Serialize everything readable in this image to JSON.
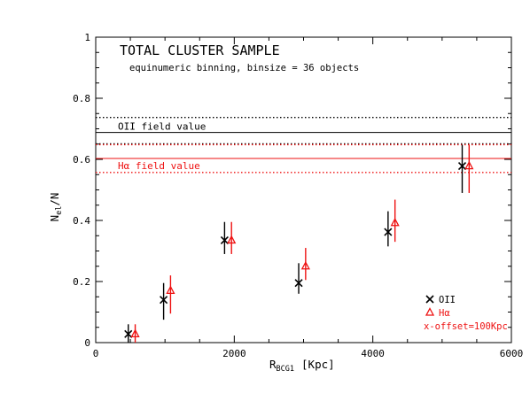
{
  "chart_data": {
    "type": "scatter",
    "title": "TOTAL CLUSTER SAMPLE",
    "subtitle": "equinumeric binning, binsize = 36 objects",
    "xlabel_main": "R",
    "xlabel_sub": "BCG1",
    "xlabel_unit": "[Kpc]",
    "ylabel_main": "N",
    "ylabel_sub": "el",
    "ylabel_tail": "/N",
    "xlim": [
      0,
      6000
    ],
    "ylim": [
      0,
      1
    ],
    "xticks": [
      0,
      2000,
      4000,
      6000
    ],
    "yticks": [
      0,
      0.2,
      0.4,
      0.6,
      0.8,
      1
    ],
    "xtick_labels": [
      "0",
      "2000",
      "4000",
      "6000"
    ],
    "ytick_labels": [
      "0",
      "0.2",
      "0.4",
      "0.6",
      "0.8",
      "1"
    ],
    "reference_lines": [
      {
        "label": "OII field value",
        "value": 0.688,
        "lower": 0.651,
        "upper": 0.737,
        "color": "#000000"
      },
      {
        "label": "Hα field value",
        "value": 0.603,
        "lower": 0.557,
        "upper": 0.648,
        "color": "#ee1111"
      }
    ],
    "series": [
      {
        "name": "OII",
        "marker": "cross",
        "color": "#000000",
        "points": [
          {
            "x": 470,
            "y": 0.028,
            "lo": 0.0,
            "hi": 0.06
          },
          {
            "x": 980,
            "y": 0.14,
            "lo": 0.075,
            "hi": 0.195
          },
          {
            "x": 1860,
            "y": 0.335,
            "lo": 0.29,
            "hi": 0.395
          },
          {
            "x": 2930,
            "y": 0.195,
            "lo": 0.16,
            "hi": 0.26
          },
          {
            "x": 4220,
            "y": 0.362,
            "lo": 0.315,
            "hi": 0.43
          },
          {
            "x": 5290,
            "y": 0.578,
            "lo": 0.49,
            "hi": 0.648
          }
        ]
      },
      {
        "name": "Hα",
        "marker": "triangle",
        "color": "#ee1111",
        "points": [
          {
            "x": 570,
            "y": 0.028,
            "lo": 0.0,
            "hi": 0.06
          },
          {
            "x": 1080,
            "y": 0.17,
            "lo": 0.095,
            "hi": 0.22
          },
          {
            "x": 1960,
            "y": 0.335,
            "lo": 0.29,
            "hi": 0.395
          },
          {
            "x": 3030,
            "y": 0.25,
            "lo": 0.205,
            "hi": 0.31
          },
          {
            "x": 4320,
            "y": 0.392,
            "lo": 0.33,
            "hi": 0.468
          },
          {
            "x": 5390,
            "y": 0.578,
            "lo": 0.49,
            "hi": 0.648
          }
        ]
      }
    ],
    "legend": {
      "position": "bottom-right",
      "note": "x-offset=100Kpc"
    }
  }
}
